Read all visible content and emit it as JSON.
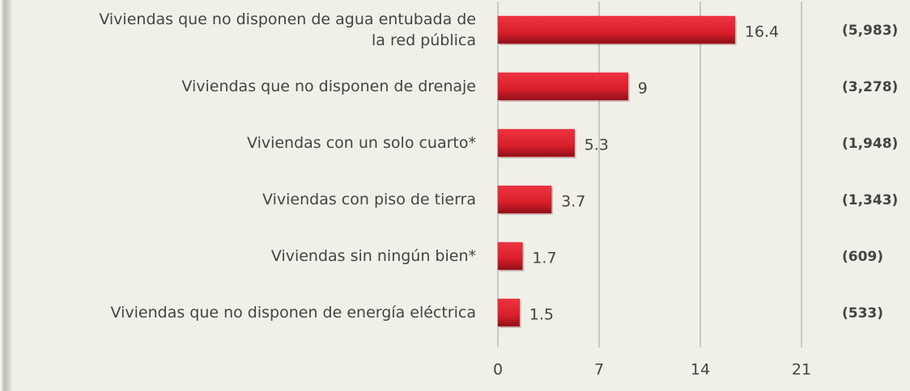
{
  "chart_data": {
    "type": "barh",
    "categories": [
      "Viviendas que no disponen de agua entubada de\nla red pública",
      "Viviendas que no disponen de drenaje",
      "Viviendas con un solo cuarto*",
      "Viviendas con piso de tierra",
      "Viviendas sin ningún bien*",
      "Viviendas que no disponen de energía eléctrica"
    ],
    "values": [
      16.4,
      9,
      5.3,
      3.7,
      1.7,
      1.5
    ],
    "count_labels": [
      "(5,983)",
      "(3,278)",
      "(1,948)",
      "(1,343)",
      "(609)",
      "(533)"
    ],
    "color": "#d91f2b",
    "xlim": [
      0,
      21
    ],
    "xticks": [
      0,
      7,
      14,
      21
    ],
    "grid": true
  }
}
